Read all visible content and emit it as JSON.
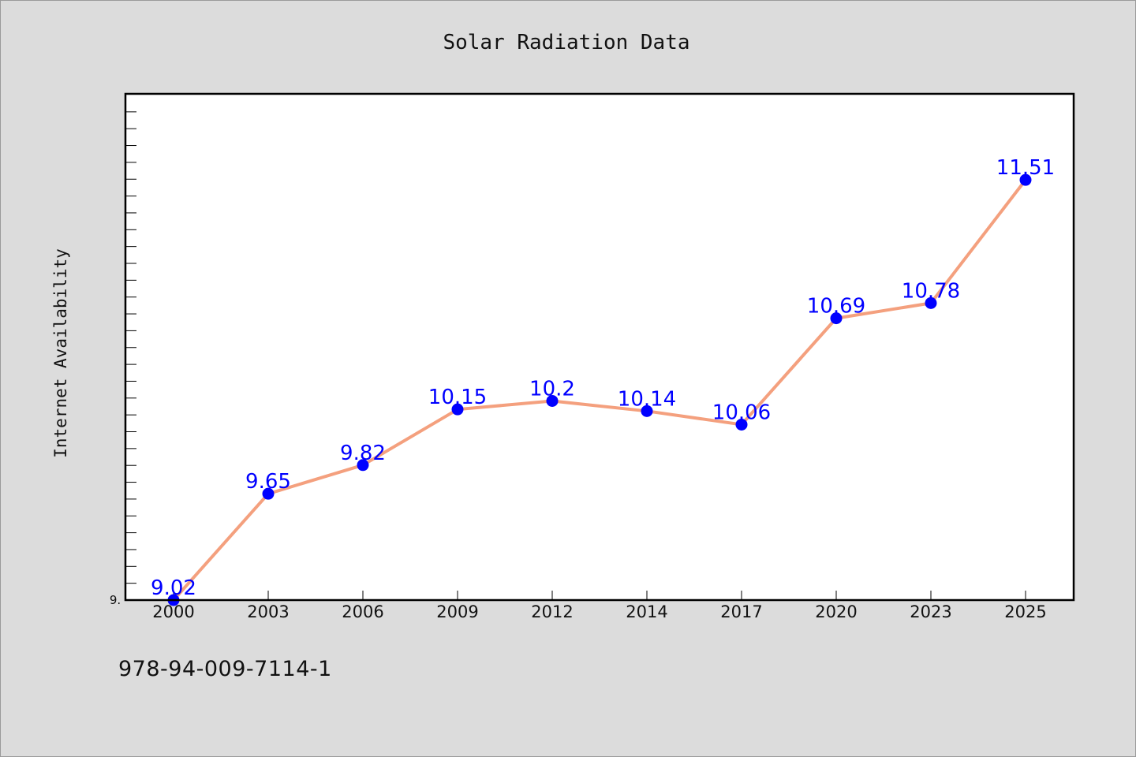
{
  "chart_data": {
    "type": "line",
    "title": "Solar Radiation Data",
    "xlabel": "",
    "ylabel": "Internet Availability",
    "categories": [
      "2000",
      "2003",
      "2006",
      "2009",
      "2012",
      "2014",
      "2017",
      "2020",
      "2023",
      "2025"
    ],
    "series": [
      {
        "values": [
          9.02,
          9.65,
          9.82,
          10.15,
          10.2,
          10.14,
          10.06,
          10.69,
          10.78,
          11.51
        ]
      }
    ],
    "data_labels": [
      "9.02",
      "9.65",
      "9.82",
      "10.15",
      "10.2",
      "10.14",
      "10.06",
      "10.69",
      "10.78",
      "11.51"
    ],
    "ytick_labels": [
      "9."
    ],
    "ylim": [
      9.02,
      12.02
    ],
    "grid": false,
    "line_color": "#f4a07e",
    "marker_color": "#0000ff",
    "label_color": "#0000ff",
    "background_color": "#dcdcdc",
    "plot_background": "#ffffff"
  },
  "footer": {
    "isbn": "978-94-009-7114-1"
  }
}
